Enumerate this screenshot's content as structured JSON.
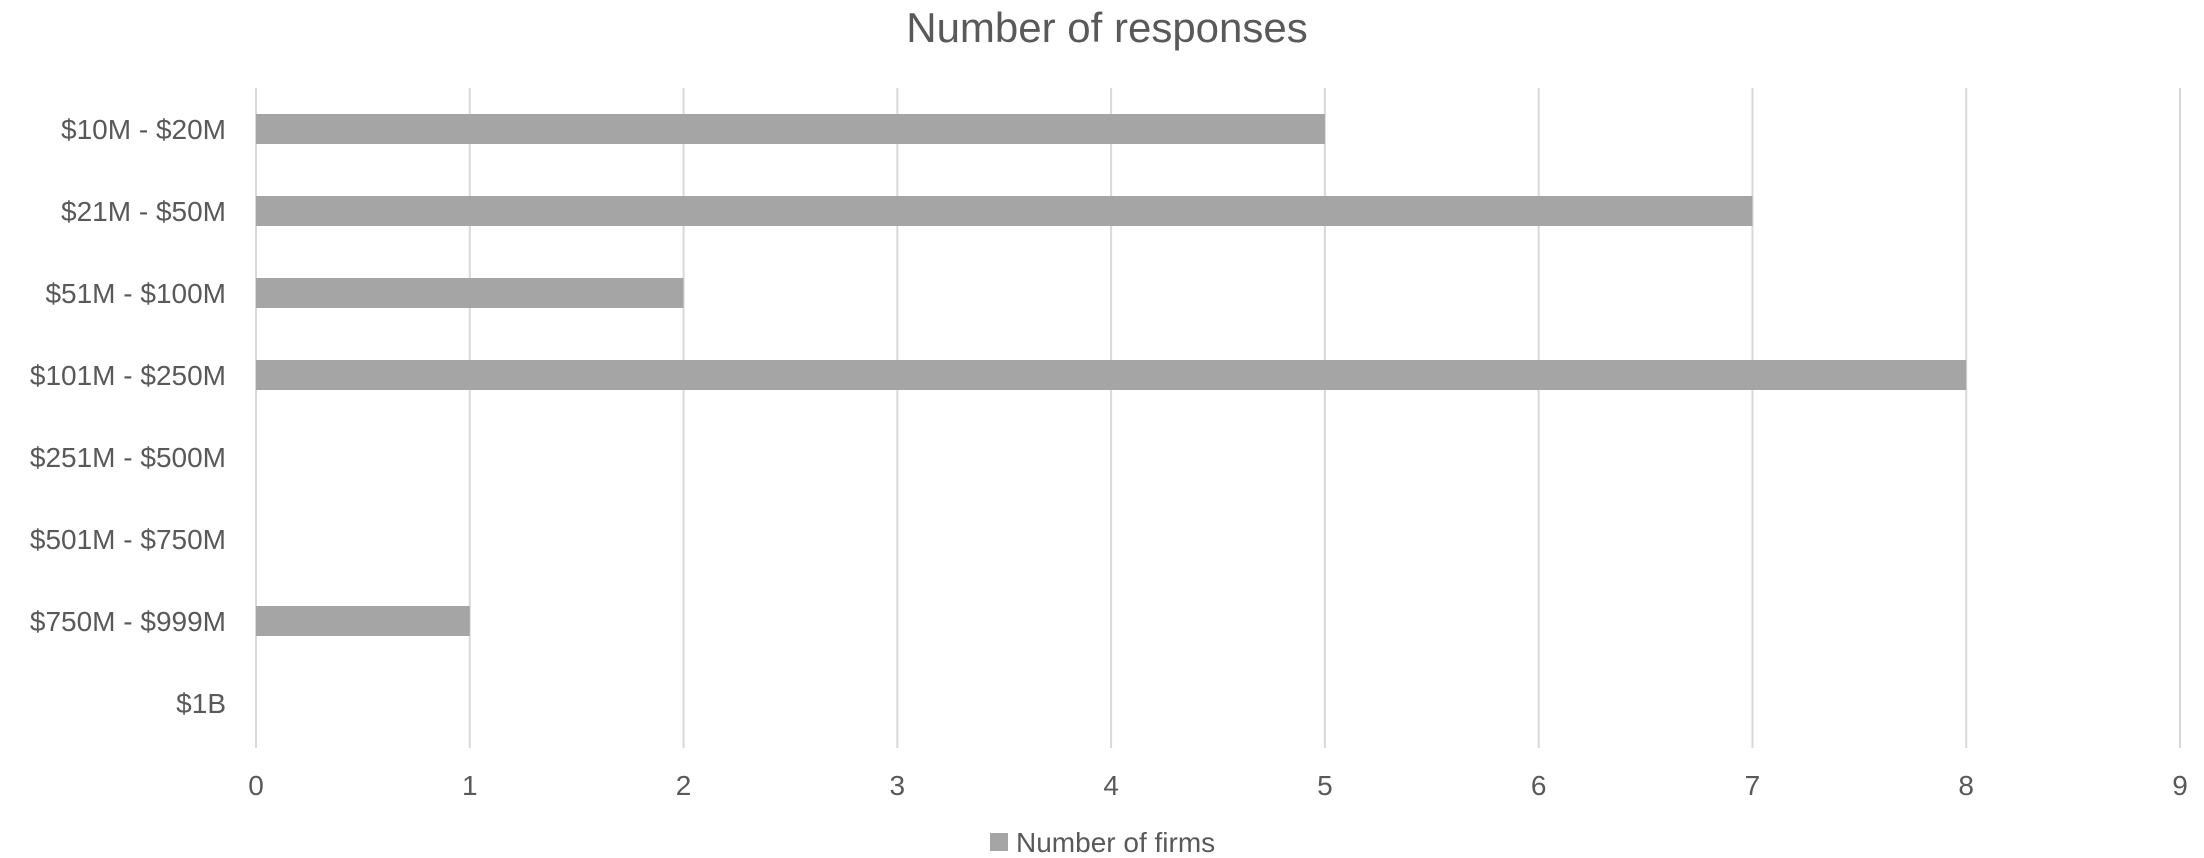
{
  "chart_data": {
    "type": "bar",
    "orientation": "horizontal",
    "title": "Number of responses",
    "categories": [
      "$10M - $20M",
      "$21M - $50M",
      "$51M - $100M",
      "$101M - $250M",
      "$251M - $500M",
      "$501M - $750M",
      "$750M - $999M",
      "$1B"
    ],
    "series": [
      {
        "name": "Number of firms",
        "values": [
          5,
          7,
          2,
          8,
          0,
          0,
          1,
          0
        ],
        "color": "#a5a5a5"
      }
    ],
    "xlim": [
      0,
      9
    ],
    "x_ticks": [
      "0",
      "1",
      "2",
      "3",
      "4",
      "5",
      "6",
      "7",
      "8",
      "9"
    ],
    "grid": "vertical",
    "legend_position": "bottom",
    "colors": {
      "grid": "#d9d9d9",
      "text": "#595959"
    }
  }
}
